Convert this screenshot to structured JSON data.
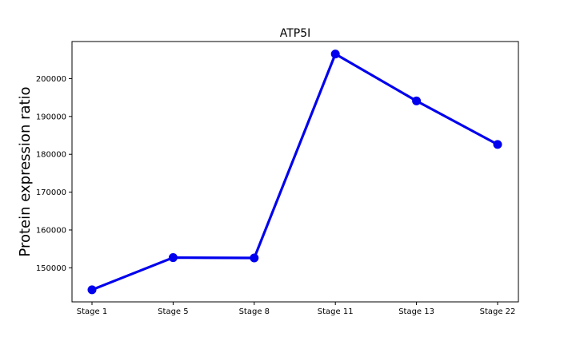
{
  "chart_data": {
    "type": "line",
    "title": "ATP5I",
    "xlabel": "",
    "ylabel": "Protein expression ratio",
    "categories": [
      "Stage 1",
      "Stage 5",
      "Stage 8",
      "Stage 11",
      "Stage 13",
      "Stage 22"
    ],
    "series": [
      {
        "values": [
          144200,
          152700,
          152600,
          206500,
          194100,
          182600
        ],
        "color": "#0000ee"
      }
    ],
    "yticks": [
      150000,
      160000,
      170000,
      180000,
      190000,
      200000
    ],
    "ytick_labels": [
      "150000",
      "160000",
      "170000",
      "180000",
      "190000",
      "200000"
    ],
    "ylim": [
      141000,
      209800
    ],
    "grid": false,
    "legend": false
  }
}
